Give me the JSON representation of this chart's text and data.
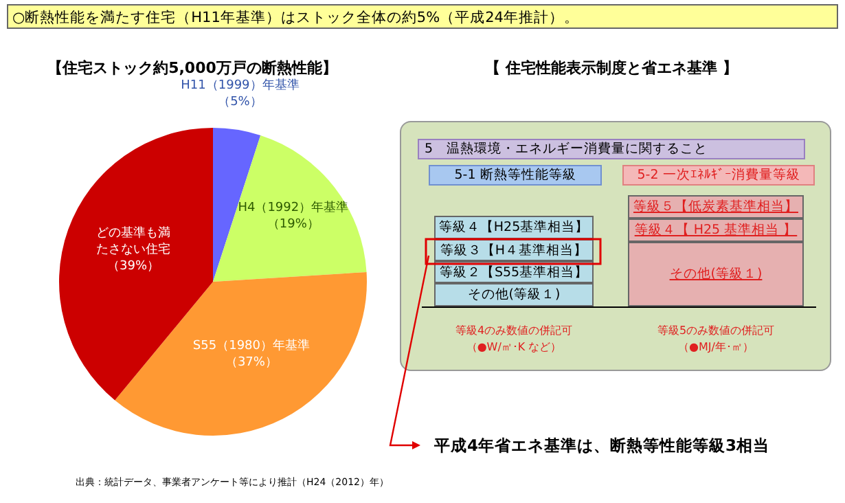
{
  "chart_data": [
    {
      "type": "pie",
      "title": "【住宅ストック約5,000万戸の断熱性能】",
      "categories": [
        "H11（1999）年基準",
        "H4（1992）年基準",
        "S55（1980）年基準",
        "どの基準も満たさない住宅"
      ],
      "values": [
        5,
        19,
        37,
        39
      ],
      "colors": [
        "#6666ff",
        "#ccff66",
        "#ff9933",
        "#cc0000"
      ],
      "value_labels": [
        "（5%）",
        "（19%）",
        "（37%）",
        "（39%）"
      ],
      "annotations": [
        "○断熱性能を満たす住宅（H11年基準）はストック全体の約5%（平成24年推計）。",
        "出典：統計データ、事業者アンケート等により推計（H24（2012）年）"
      ]
    },
    {
      "type": "other",
      "title": "【 住宅性能表示制度と省エネ基準 】",
      "annotations": [
        "5　温熱環境・エネルギー消費量に関すること",
        "5-1 断熱等性能等級",
        "5-2 一次ｴﾈﾙｷﾞｰ消費量等級",
        "等級４【H25基準相当】",
        "等級３【H４基準相当】",
        "等級２【S55基準相当】",
        "その他(等級１)",
        "等級５【低炭素基準相当】",
        "等級４【 H25 基準相当 】",
        "その他(等級１)",
        "等級4のみ数値の併記可",
        "（●W/㎡･K など）",
        "等級5のみ数値の併記可",
        "（●MJ/年･㎡）",
        "平成4年省エネ基準は、断熱等性能等級3相当"
      ]
    }
  ]
}
